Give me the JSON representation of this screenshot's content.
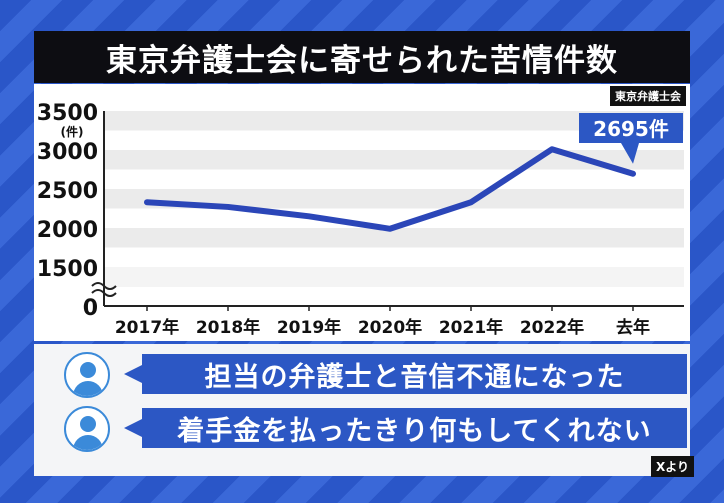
{
  "title": "東京弁護士会に寄せられた苦情件数",
  "source_label": "東京弁護士会",
  "callout": "2695件",
  "credit": "Xより",
  "messages": [
    {
      "text": "担当の弁護士と音信不通になった",
      "icon": "user-icon"
    },
    {
      "text": "着手金を払ったきり何もしてくれない",
      "icon": "user-icon"
    }
  ],
  "colors": {
    "line": "#2b46b8",
    "accent": "#2c57c4",
    "band": "#ebebeb"
  },
  "chart_data": {
    "type": "line",
    "categories": [
      "2017年",
      "2018年",
      "2019年",
      "2020年",
      "2021年",
      "2022年",
      "去年"
    ],
    "values": [
      2330,
      2270,
      2150,
      1990,
      2330,
      3010,
      2695
    ],
    "y_ticks": [
      "3500",
      "3000",
      "2500",
      "2000",
      "1500",
      "0"
    ],
    "y_tick_values": [
      3500,
      3000,
      2500,
      2000,
      1500
    ],
    "ylabel": "(件)",
    "ylim": [
      1500,
      3500
    ],
    "axis_break": true,
    "grid": true
  }
}
